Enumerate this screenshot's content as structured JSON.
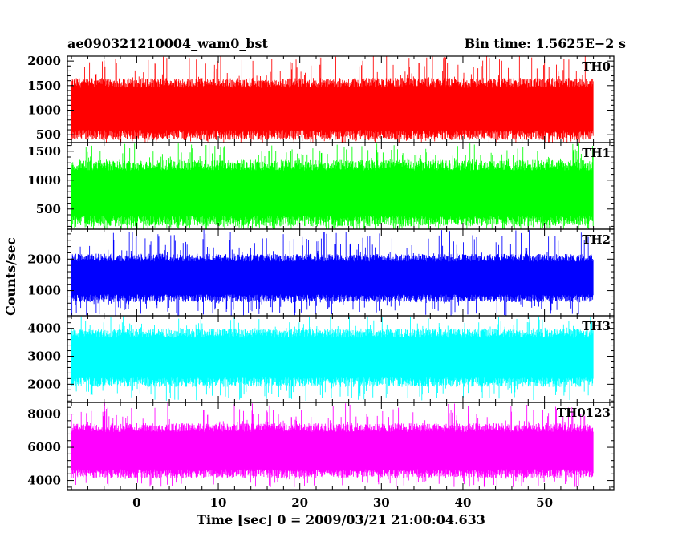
{
  "header": {
    "title": "ae090321210004_wam0_bst",
    "bin_time": "Bin time: 1.5625E−2 s"
  },
  "chart_data": {
    "type": "line",
    "xlabel": "Time [sec] 0 = 2009/03/21 21:00:04.633",
    "ylabel": "Counts/sec",
    "xlim": [
      -8.5,
      58.5
    ],
    "x_ticks": [
      0,
      10,
      20,
      30,
      40,
      50
    ],
    "x_tick_labels": [
      "0",
      "10",
      "20",
      "30",
      "40",
      "50"
    ],
    "data_x_range": [
      -8,
      56
    ],
    "grid": false,
    "panels": [
      {
        "name": "TH0",
        "color": "#ff0000",
        "ylim": [
          340,
          2100
        ],
        "yticks": [
          500,
          1000,
          1500,
          2000
        ],
        "ytick_labels": [
          "500",
          "1000",
          "1500",
          "2000"
        ],
        "typical_range": [
          450,
          1600
        ],
        "min": 300,
        "max": 2150
      },
      {
        "name": "TH1",
        "color": "#00ff00",
        "ylim": [
          150,
          1650
        ],
        "yticks": [
          500,
          1000,
          1500
        ],
        "ytick_labels": [
          "500",
          "1000",
          "1500"
        ],
        "typical_range": [
          250,
          1300
        ],
        "min": 100,
        "max": 1650
      },
      {
        "name": "TH2",
        "color": "#0000ff",
        "ylim": [
          200,
          2950
        ],
        "yticks": [
          1000,
          2000
        ],
        "ytick_labels": [
          "1000",
          "2000"
        ],
        "typical_range": [
          700,
          2100
        ],
        "min": 200,
        "max": 2950
      },
      {
        "name": "TH3",
        "color": "#00ffff",
        "ylim": [
          1350,
          4450
        ],
        "yticks": [
          2000,
          3000,
          4000
        ],
        "ytick_labels": [
          "2000",
          "3000",
          "4000"
        ],
        "typical_range": [
          2000,
          3900
        ],
        "min": 1400,
        "max": 4450
      },
      {
        "name": "TH0123",
        "color": "#ff00ff",
        "ylim": [
          3450,
          8700
        ],
        "yticks": [
          4000,
          6000,
          8000
        ],
        "ytick_labels": [
          "4000",
          "6000",
          "8000"
        ],
        "typical_range": [
          4300,
          7300
        ],
        "min": 3600,
        "max": 8700
      }
    ]
  }
}
